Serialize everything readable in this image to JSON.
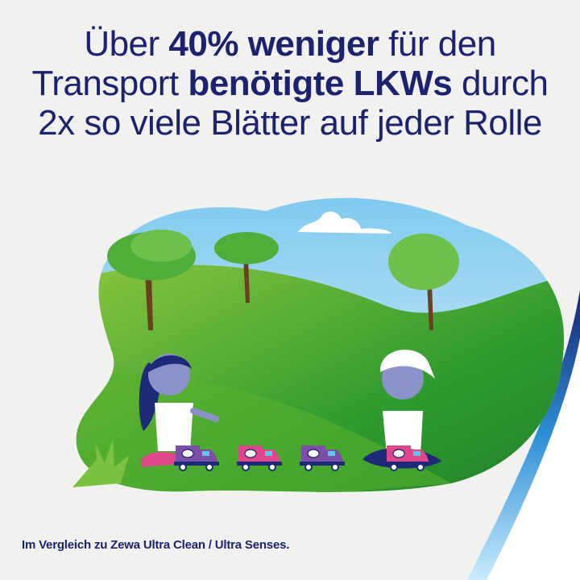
{
  "headline": {
    "line1": {
      "pre": "Über ",
      "bold": "40% weniger",
      "post": " für den"
    },
    "line2": {
      "pre": "Transport ",
      "bold": "benötigte LKWs",
      "post": " durch"
    },
    "line3": {
      "pre": "2x so viele Blätter auf jeder Rolle"
    }
  },
  "footnote": "Im Vergleich zu Zewa Ultra Clean / Ultra Senses.",
  "colors": {
    "navy": "#1b2370",
    "grass": "#3aa52a",
    "sky": "#8fd0ef",
    "truck_purple": "#7b4ea8",
    "truck_pink": "#e0468a",
    "swoosh_blue": "#2c8fd6"
  },
  "illustration": {
    "trucks": [
      "purple",
      "pink",
      "purple",
      "pink"
    ],
    "logo": "zewa-logo"
  }
}
